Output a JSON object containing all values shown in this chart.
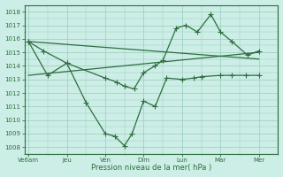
{
  "xlabel": "Pression niveau de la mer( hPa )",
  "bg_color": "#cceee6",
  "grid_color": "#99ccbb",
  "line_color": "#2d6e3e",
  "ylim": [
    1007.5,
    1018.5
  ],
  "yticks": [
    1008,
    1009,
    1010,
    1011,
    1012,
    1013,
    1014,
    1015,
    1016,
    1017,
    1018
  ],
  "xtick_labels": [
    "Ve6am",
    "Jeu",
    "Ven",
    "Dim",
    "Lun",
    "Mar",
    "Mer"
  ],
  "xtick_positions": [
    0,
    1,
    2,
    3,
    4,
    5,
    6
  ],
  "xlim": [
    -0.1,
    6.5
  ],
  "series1_x": [
    0,
    0.4,
    1.0,
    1.5,
    2.0,
    2.25,
    2.5,
    2.7,
    3.0,
    3.3,
    3.6,
    4.0,
    4.3,
    4.5,
    5.0,
    5.3,
    5.65,
    6.0
  ],
  "series1_y": [
    1015.8,
    1015.1,
    1014.2,
    1011.3,
    1009.0,
    1008.8,
    1008.1,
    1009.0,
    1011.4,
    1011.0,
    1013.1,
    1013.0,
    1013.1,
    1013.2,
    1013.3,
    1013.3,
    1013.3,
    1013.3
  ],
  "series2_x": [
    0,
    0.5,
    1.0,
    2.0,
    2.3,
    2.5,
    2.75,
    3.0,
    3.3,
    3.5,
    3.85,
    4.1,
    4.4,
    4.75,
    5.0,
    5.3,
    5.7,
    6.0
  ],
  "series2_y": [
    1015.8,
    1013.3,
    1014.2,
    1013.1,
    1012.8,
    1012.5,
    1012.3,
    1013.5,
    1014.0,
    1014.4,
    1016.8,
    1017.0,
    1016.5,
    1017.8,
    1016.5,
    1015.8,
    1014.8,
    1015.1
  ],
  "trend1_x": [
    0,
    6
  ],
  "trend1_y": [
    1015.8,
    1014.5
  ],
  "trend2_x": [
    0,
    6
  ],
  "trend2_y": [
    1013.3,
    1015.0
  ],
  "marker_size": 2.5,
  "line_width": 0.9
}
